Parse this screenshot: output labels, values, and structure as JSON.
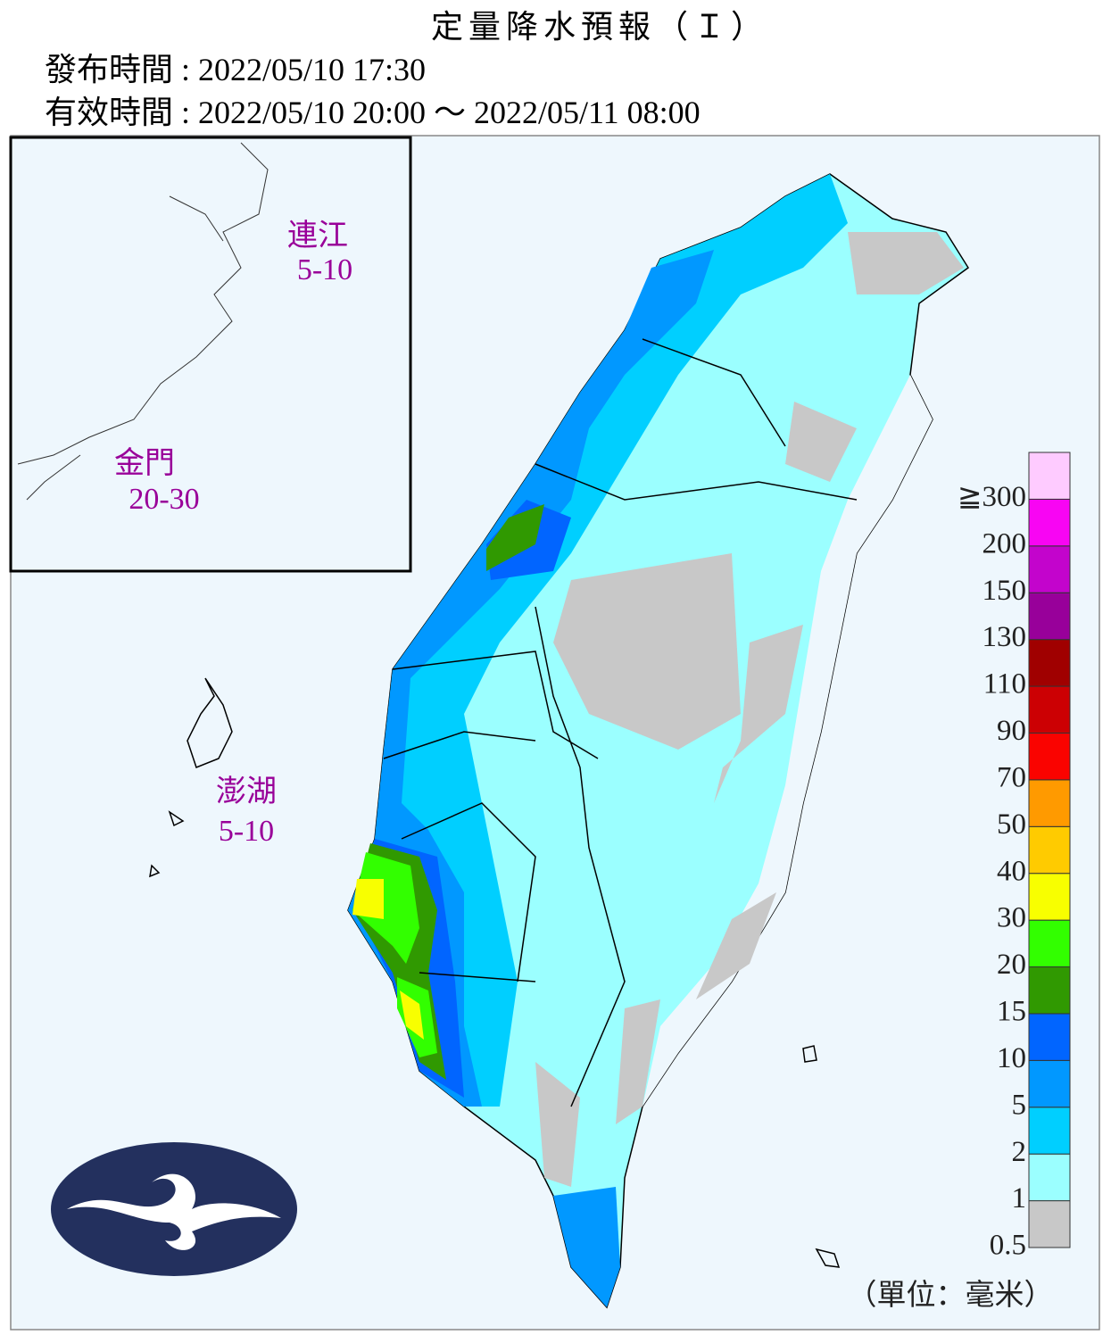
{
  "header": {
    "title": "定量降水預報（Ｉ）",
    "issued": "發布時間 : 2022/05/10 17:30",
    "valid": "有效時間 : 2022/05/10 20:00 ～ 2022/05/11 08:00"
  },
  "regions": [
    {
      "name": "連江",
      "range": "5-10"
    },
    {
      "name": "金門",
      "range": "20-30"
    },
    {
      "name": "澎湖",
      "range": "5-10"
    }
  ],
  "legend": {
    "colors": [
      "#c8c8c8",
      "#9bffff",
      "#00cfff",
      "#0198ff",
      "#0165ff",
      "#309901",
      "#32ff00",
      "#f8ff00",
      "#ffcb00",
      "#ff9a00",
      "#fa0300",
      "#cc0003",
      "#a00000",
      "#98009a",
      "#c304cc",
      "#f805f3",
      "#fecbff"
    ],
    "ticks": [
      0.5,
      1,
      2,
      5,
      10,
      15,
      20,
      30,
      40,
      50,
      70,
      90,
      110,
      130,
      150,
      200,
      {
        "value": 300,
        "label": "≧300"
      }
    ],
    "unit": "（單位：毫米）"
  }
}
